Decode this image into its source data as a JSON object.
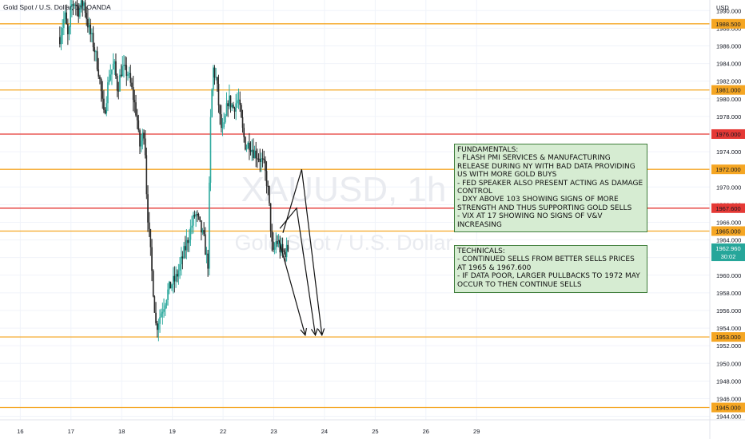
{
  "header": {
    "symbol_title": "Gold Spot / U.S. Dollar, 1h, OANDA",
    "currency": "USD",
    "watermark_ticker": "XAUUSD, 1h",
    "watermark_name": "Gold Spot / U.S. Dollar"
  },
  "notes": {
    "fundamentals": "FUNDAMENTALS:\n- FLASH PMI SERVICES & MANUFACTURING RELEASE DURING NY WITH BAD DATA PROVIDING US WITH MORE GOLD BUYS\n- FED SPEAKER ALSO PRESENT ACTING AS DAMAGE CONTROL\n- DXY ABOVE 103 SHOWING SIGNS OF MORE STRENGTH AND THUS SUPPORTING GOLD SELLS\n- VIX AT 17 SHOWING NO SIGNS OF V&V INCREASING",
    "technicals": "TECHNICALS:\n- CONTINUED SELLS FROM BETTER SELLS PRICES AT 1965 & 1967.600\n- IF DATA POOR, LARGER PULLBACKS TO 1972 MAY OCCUR TO THEN CONTINUE SELLS"
  },
  "chart_data": {
    "type": "candlestick",
    "title": "Gold Spot / U.S. Dollar, 1h, OANDA",
    "ylabel": "USD",
    "ylim": [
      1943.6,
      1991.2
    ],
    "xlim": [
      15.6,
      29.6
    ],
    "y_ticks": [
      1944,
      1946,
      1948,
      1950,
      1952,
      1954,
      1956,
      1958,
      1960,
      1962,
      1964,
      1966,
      1968,
      1970,
      1972,
      1974,
      1976,
      1978,
      1980,
      1982,
      1984,
      1986,
      1988,
      1990
    ],
    "x_ticks": [
      16,
      17,
      18,
      19,
      22,
      23,
      24,
      25,
      26,
      29
    ],
    "x_tick_labels": [
      "16",
      "17",
      "18",
      "19",
      "22",
      "23",
      "24",
      "25",
      "26",
      "29"
    ],
    "x_tick_positions": [
      16,
      17,
      18,
      19,
      20,
      21,
      22,
      23,
      24,
      25
    ],
    "colors": {
      "up": "#26a69a",
      "down": "#222222",
      "orange": "#f5a623",
      "red": "#e53935",
      "grid": "#f0f3fa"
    },
    "horizontal_levels": [
      {
        "price": 1988.5,
        "label": "1988.500",
        "color": "#f5a623"
      },
      {
        "price": 1981.0,
        "label": "1981.000",
        "color": "#f5a623"
      },
      {
        "price": 1976.0,
        "label": "1976.000",
        "color": "#e53935"
      },
      {
        "price": 1972.0,
        "label": "1972.000",
        "color": "#f5a623"
      },
      {
        "price": 1967.6,
        "label": "1967.600",
        "color": "#e53935"
      },
      {
        "price": 1965.0,
        "label": "1965.000",
        "color": "#f5a623"
      },
      {
        "price": 1953.0,
        "label": "1953.000",
        "color": "#f5a623"
      },
      {
        "price": 1945.0,
        "label": "1945.000",
        "color": "#f5a623"
      }
    ],
    "current_price": {
      "price": 1962.96,
      "label": "1962.960",
      "countdown": "30:02",
      "color": "#26a69a"
    },
    "candle_anchors": [
      [
        16.78,
        1987.0
      ],
      [
        16.88,
        1989.5
      ],
      [
        16.95,
        1986.5
      ],
      [
        17.0,
        1990.5
      ],
      [
        17.08,
        1991.0
      ],
      [
        17.15,
        1990.0
      ],
      [
        17.25,
        1991.0
      ],
      [
        17.35,
        1988.0
      ],
      [
        17.45,
        1986.0
      ],
      [
        17.55,
        1983.0
      ],
      [
        17.65,
        1978.0
      ],
      [
        17.75,
        1982.5
      ],
      [
        17.85,
        1984.0
      ],
      [
        17.92,
        1981.0
      ],
      [
        18.0,
        1983.5
      ],
      [
        18.08,
        1983.0
      ],
      [
        18.12,
        1983.0
      ],
      [
        18.2,
        1981.0
      ],
      [
        18.3,
        1978.0
      ],
      [
        18.35,
        1974.5
      ],
      [
        18.45,
        1976.5
      ],
      [
        18.5,
        1968.0
      ],
      [
        18.6,
        1960.0
      ],
      [
        18.68,
        1954.0
      ],
      [
        18.76,
        1955.5
      ],
      [
        18.85,
        1957.0
      ],
      [
        18.9,
        1958.0
      ],
      [
        18.98,
        1959.0
      ],
      [
        19.06,
        1959.5
      ],
      [
        19.15,
        1961.0
      ],
      [
        19.25,
        1963.0
      ],
      [
        19.35,
        1965.0
      ],
      [
        19.45,
        1967.0
      ],
      [
        19.52,
        1966.0
      ],
      [
        19.62,
        1964.0
      ],
      [
        19.7,
        1961.0
      ],
      [
        19.75,
        1977.0
      ],
      [
        19.8,
        1983.5
      ],
      [
        19.87,
        1982.0
      ],
      [
        19.95,
        1977.0
      ],
      [
        20.0,
        1976.0
      ],
      [
        20.1,
        1980.0
      ],
      [
        20.2,
        1979.0
      ],
      [
        20.3,
        1980.0
      ],
      [
        20.38,
        1976.5
      ],
      [
        20.45,
        1974.5
      ],
      [
        20.52,
        1975.0
      ],
      [
        20.6,
        1974.0
      ],
      [
        20.7,
        1973.5
      ],
      [
        20.8,
        1972.5
      ],
      [
        20.88,
        1970.0
      ],
      [
        20.92,
        1967.0
      ],
      [
        20.98,
        1962.0
      ],
      [
        21.05,
        1964.0
      ],
      [
        21.12,
        1963.0
      ],
      [
        21.2,
        1962.5
      ],
      [
        21.28,
        1963.0
      ]
    ],
    "candle_count": 172,
    "arrows": [
      {
        "from": [
          21.18,
          1964.8
        ],
        "peak": [
          21.55,
          1972.0
        ],
        "to": [
          21.95,
          1953.2
        ]
      },
      {
        "from": [
          21.12,
          1965.3
        ],
        "peak": [
          21.45,
          1967.6
        ],
        "to": [
          21.82,
          1953.2
        ]
      },
      {
        "from": [
          21.1,
          1964.0
        ],
        "peak": null,
        "to": [
          21.62,
          1953.2
        ]
      }
    ]
  }
}
